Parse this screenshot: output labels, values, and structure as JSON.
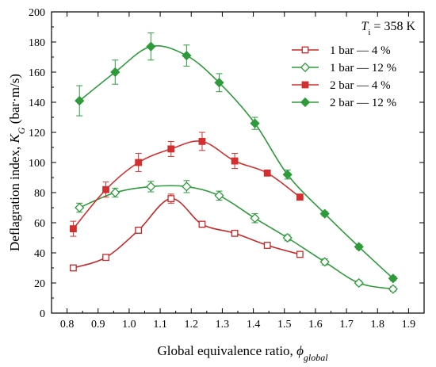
{
  "chart_data": {
    "type": "line",
    "xlabel_main": "Global equivalence ratio, ",
    "xlabel_symbol": "ϕ",
    "xlabel_subscript": "global",
    "ylabel_main": "Deflagration  index, ",
    "ylabel_symbol": "K",
    "ylabel_subscript": "G",
    "ylabel_unit": " (bar·m/s)",
    "xlim": [
      0.75,
      1.95
    ],
    "ylim": [
      0,
      200
    ],
    "xticks": [
      0.8,
      0.9,
      1.0,
      1.1,
      1.2,
      1.3,
      1.4,
      1.5,
      1.6,
      1.7,
      1.8,
      1.9
    ],
    "xtick_labels": [
      "0.8",
      "0.9",
      "1.0",
      "1.1",
      "1.2",
      "1.3",
      "1.4",
      "1.5",
      "1.6",
      "1.7",
      "1.8",
      "1.9"
    ],
    "yticks": [
      0,
      20,
      40,
      60,
      80,
      100,
      120,
      140,
      160,
      180,
      200
    ],
    "ytick_labels": [
      "0",
      "20",
      "40",
      "60",
      "80",
      "100",
      "120",
      "140",
      "160",
      "180",
      "200"
    ],
    "annotation": {
      "var": "T",
      "sub": "i",
      "rest": " = 358 K"
    },
    "legend_position": "top-right",
    "series": [
      {
        "name": "1 bar —   4 %",
        "color": "#c62828",
        "marker": "square-open",
        "x": [
          0.82,
          0.925,
          1.03,
          1.135,
          1.235,
          1.34,
          1.445,
          1.55
        ],
        "y": [
          30,
          37,
          55,
          76,
          59,
          53,
          45,
          39
        ],
        "err": [
          1.5,
          1.5,
          2,
          3,
          2,
          2,
          1.5,
          1.5
        ]
      },
      {
        "name": "1 bar — 12 %",
        "color": "#2e9b3a",
        "marker": "diamond-open",
        "x": [
          0.84,
          0.955,
          1.07,
          1.185,
          1.29,
          1.405,
          1.51,
          1.63,
          1.74,
          1.85
        ],
        "y": [
          70,
          80,
          84,
          84,
          78,
          63,
          50,
          34,
          20,
          16
        ],
        "err": [
          3,
          3,
          3.5,
          4,
          3,
          3,
          2,
          2,
          1.5,
          1.5
        ]
      },
      {
        "name": "2 bar —   4 %",
        "color": "#d32f2f",
        "marker": "square-filled",
        "x": [
          0.82,
          0.925,
          1.03,
          1.135,
          1.235,
          1.34,
          1.445,
          1.55
        ],
        "y": [
          56,
          82,
          100,
          109,
          114,
          101,
          93,
          77
        ],
        "err": [
          5,
          5,
          6,
          5,
          6,
          5,
          2,
          2
        ]
      },
      {
        "name": "2 bar — 12 %",
        "color": "#2e9b3a",
        "marker": "diamond-filled",
        "x": [
          0.84,
          0.955,
          1.07,
          1.185,
          1.29,
          1.405,
          1.51,
          1.63,
          1.74,
          1.85
        ],
        "y": [
          141,
          160,
          177,
          171,
          153,
          126,
          92,
          66,
          44,
          23
        ],
        "err": [
          10,
          8,
          9,
          7,
          6,
          4,
          3,
          1.5,
          1.5,
          1.5
        ]
      }
    ]
  }
}
